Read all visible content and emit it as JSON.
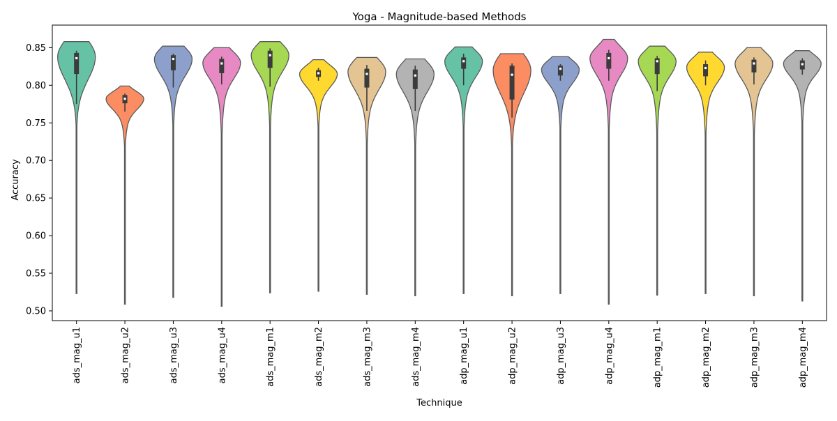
{
  "chart_data": {
    "type": "violin",
    "title": "Yoga - Magnitude-based Methods",
    "xlabel": "Technique",
    "ylabel": "Accuracy",
    "ylim": [
      0.487,
      0.88
    ],
    "yticks": [
      0.5,
      0.55,
      0.6,
      0.65,
      0.7,
      0.75,
      0.8,
      0.85
    ],
    "ytick_labels": [
      "0.50",
      "0.55",
      "0.60",
      "0.65",
      "0.70",
      "0.75",
      "0.80",
      "0.85"
    ],
    "grid": false,
    "legend": "none",
    "categories": [
      "ads_mag_u1",
      "ads_mag_u2",
      "ads_mag_u3",
      "ads_mag_u4",
      "ads_mag_m1",
      "ads_mag_m2",
      "ads_mag_m3",
      "ads_mag_m4",
      "adp_mag_u1",
      "adp_mag_u2",
      "adp_mag_u3",
      "adp_mag_u4",
      "adp_mag_m1",
      "adp_mag_m2",
      "adp_mag_m3",
      "adp_mag_m4"
    ],
    "colors": [
      "#66c2a5",
      "#fc8d62",
      "#8da0cb",
      "#e78ac3",
      "#a6d854",
      "#ffd92f",
      "#e5c494",
      "#b3b3b3",
      "#66c2a5",
      "#fc8d62",
      "#8da0cb",
      "#e78ac3",
      "#a6d854",
      "#ffd92f",
      "#e5c494",
      "#b3b3b3"
    ],
    "outline_color": "#595959",
    "violins": [
      {
        "min": 0.523,
        "max": 0.858,
        "mode": 0.838,
        "q1": 0.815,
        "median": 0.836,
        "q3": 0.843,
        "wlow": 0.775,
        "whigh": 0.846,
        "spread": 0.022,
        "lowtail": 0.028
      },
      {
        "min": 0.509,
        "max": 0.799,
        "mode": 0.782,
        "q1": 0.776,
        "median": 0.782,
        "q3": 0.787,
        "wlow": 0.765,
        "whigh": 0.789,
        "spread": 0.01,
        "lowtail": 0.02
      },
      {
        "min": 0.518,
        "max": 0.852,
        "mode": 0.835,
        "q1": 0.82,
        "median": 0.835,
        "q3": 0.84,
        "wlow": 0.797,
        "whigh": 0.842,
        "spread": 0.016,
        "lowtail": 0.028
      },
      {
        "min": 0.506,
        "max": 0.85,
        "mode": 0.83,
        "q1": 0.816,
        "median": 0.829,
        "q3": 0.835,
        "wlow": 0.801,
        "whigh": 0.838,
        "spread": 0.015,
        "lowtail": 0.03
      },
      {
        "min": 0.524,
        "max": 0.858,
        "mode": 0.84,
        "q1": 0.823,
        "median": 0.84,
        "q3": 0.846,
        "wlow": 0.798,
        "whigh": 0.849,
        "spread": 0.016,
        "lowtail": 0.03
      },
      {
        "min": 0.526,
        "max": 0.834,
        "mode": 0.815,
        "q1": 0.811,
        "median": 0.816,
        "q3": 0.82,
        "wlow": 0.806,
        "whigh": 0.823,
        "spread": 0.012,
        "lowtail": 0.022
      },
      {
        "min": 0.522,
        "max": 0.837,
        "mode": 0.818,
        "q1": 0.797,
        "median": 0.815,
        "q3": 0.822,
        "wlow": 0.766,
        "whigh": 0.827,
        "spread": 0.017,
        "lowtail": 0.03
      },
      {
        "min": 0.52,
        "max": 0.835,
        "mode": 0.815,
        "q1": 0.795,
        "median": 0.813,
        "q3": 0.821,
        "wlow": 0.766,
        "whigh": 0.826,
        "spread": 0.017,
        "lowtail": 0.03
      },
      {
        "min": 0.523,
        "max": 0.851,
        "mode": 0.832,
        "q1": 0.822,
        "median": 0.832,
        "q3": 0.837,
        "wlow": 0.8,
        "whigh": 0.842,
        "spread": 0.015,
        "lowtail": 0.028
      },
      {
        "min": 0.52,
        "max": 0.842,
        "mode": 0.82,
        "q1": 0.781,
        "median": 0.814,
        "q3": 0.826,
        "wlow": 0.757,
        "whigh": 0.829,
        "spread": 0.022,
        "lowtail": 0.032
      },
      {
        "min": 0.523,
        "max": 0.838,
        "mode": 0.821,
        "q1": 0.813,
        "median": 0.822,
        "q3": 0.826,
        "wlow": 0.806,
        "whigh": 0.828,
        "spread": 0.013,
        "lowtail": 0.025
      },
      {
        "min": 0.509,
        "max": 0.861,
        "mode": 0.836,
        "q1": 0.822,
        "median": 0.836,
        "q3": 0.843,
        "wlow": 0.806,
        "whigh": 0.847,
        "spread": 0.016,
        "lowtail": 0.03
      },
      {
        "min": 0.521,
        "max": 0.852,
        "mode": 0.832,
        "q1": 0.815,
        "median": 0.832,
        "q3": 0.836,
        "wlow": 0.792,
        "whigh": 0.839,
        "spread": 0.015,
        "lowtail": 0.03
      },
      {
        "min": 0.523,
        "max": 0.844,
        "mode": 0.824,
        "q1": 0.812,
        "median": 0.823,
        "q3": 0.828,
        "wlow": 0.8,
        "whigh": 0.833,
        "spread": 0.014,
        "lowtail": 0.028
      },
      {
        "min": 0.52,
        "max": 0.85,
        "mode": 0.829,
        "q1": 0.817,
        "median": 0.829,
        "q3": 0.834,
        "wlow": 0.801,
        "whigh": 0.837,
        "spread": 0.015,
        "lowtail": 0.03
      },
      {
        "min": 0.513,
        "max": 0.846,
        "mode": 0.829,
        "q1": 0.821,
        "median": 0.828,
        "q3": 0.833,
        "wlow": 0.814,
        "whigh": 0.836,
        "spread": 0.012,
        "lowtail": 0.025
      }
    ]
  }
}
